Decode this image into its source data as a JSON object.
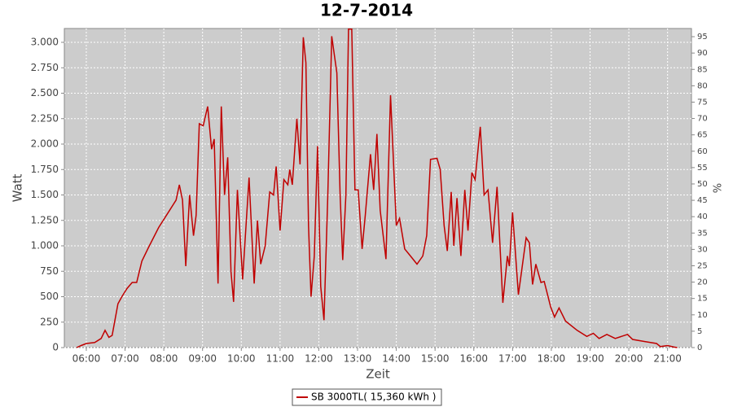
{
  "chart_data": {
    "type": "line",
    "title": "12-7-2014",
    "x_label": "Zeit",
    "y_label": "Watt",
    "y2_label": "%",
    "x": [
      "05:45",
      "05:52",
      "06:00",
      "06:13",
      "06:23",
      "06:29",
      "06:35",
      "06:40",
      "06:49",
      "06:55",
      "07:03",
      "07:11",
      "07:18",
      "07:26",
      "07:36",
      "07:52",
      "08:09",
      "08:19",
      "08:24",
      "08:29",
      "08:34",
      "08:40",
      "08:46",
      "08:50",
      "08:55",
      "09:01",
      "09:08",
      "09:14",
      "09:18",
      "09:24",
      "09:29",
      "09:34",
      "09:39",
      "09:44",
      "09:48",
      "09:54",
      "10:02",
      "10:12",
      "10:20",
      "10:25",
      "10:30",
      "10:37",
      "10:44",
      "10:50",
      "10:54",
      "11:00",
      "11:06",
      "11:12",
      "11:15",
      "11:19",
      "11:26",
      "11:31",
      "11:36",
      "11:40",
      "11:44",
      "11:48",
      "11:53",
      "11:58",
      "12:03",
      "12:08",
      "12:14",
      "12:20",
      "12:28",
      "12:33",
      "12:37",
      "12:42",
      "12:46",
      "12:51",
      "12:56",
      "13:01",
      "13:07",
      "13:12",
      "13:20",
      "13:25",
      "13:30",
      "13:35",
      "13:44",
      "13:51",
      "14:00",
      "14:05",
      "14:13",
      "14:22",
      "14:32",
      "14:41",
      "14:47",
      "14:53",
      "15:03",
      "15:08",
      "15:14",
      "15:19",
      "15:25",
      "15:29",
      "15:34",
      "15:40",
      "15:46",
      "15:51",
      "15:57",
      "16:02",
      "16:10",
      "16:16",
      "16:22",
      "16:29",
      "16:36",
      "16:45",
      "16:52",
      "16:55",
      "17:00",
      "17:09",
      "17:21",
      "17:26",
      "17:31",
      "17:36",
      "17:44",
      "17:49",
      "17:59",
      "18:05",
      "18:12",
      "18:22",
      "18:40",
      "18:55",
      "19:05",
      "19:14",
      "19:26",
      "19:39",
      "19:58",
      "20:06",
      "20:24",
      "20:43",
      "20:49",
      "21:00",
      "21:10",
      "21:15"
    ],
    "series": [
      {
        "name": "SB 3000TL( 15,360 kWh )",
        "color": "#c00000",
        "values": [
          0,
          20,
          40,
          50,
          90,
          170,
          100,
          120,
          430,
          500,
          580,
          640,
          640,
          850,
          980,
          1180,
          1350,
          1450,
          1600,
          1450,
          800,
          1500,
          1100,
          1300,
          2200,
          2180,
          2370,
          1950,
          2050,
          630,
          2370,
          1500,
          1870,
          750,
          450,
          1550,
          670,
          1670,
          630,
          1250,
          820,
          1000,
          1530,
          1500,
          1780,
          1150,
          1650,
          1600,
          1750,
          1600,
          2250,
          1800,
          3050,
          2800,
          1200,
          500,
          900,
          1980,
          600,
          270,
          1500,
          3060,
          2700,
          1500,
          860,
          1500,
          3130,
          3130,
          1550,
          1550,
          970,
          1300,
          1900,
          1550,
          2100,
          1350,
          870,
          2480,
          1200,
          1270,
          970,
          900,
          820,
          900,
          1100,
          1850,
          1860,
          1750,
          1200,
          950,
          1530,
          1000,
          1470,
          900,
          1550,
          1150,
          1720,
          1650,
          2170,
          1500,
          1550,
          1030,
          1580,
          440,
          900,
          800,
          1330,
          520,
          1080,
          1030,
          620,
          820,
          640,
          650,
          400,
          300,
          390,
          260,
          170,
          110,
          140,
          90,
          130,
          90,
          130,
          80,
          60,
          40,
          10,
          20,
          5,
          0
        ]
      }
    ],
    "xlim": [
      "05:26",
      "21:37"
    ],
    "xticks": [
      "06:00",
      "07:00",
      "08:00",
      "09:00",
      "10:00",
      "11:00",
      "12:00",
      "13:00",
      "14:00",
      "15:00",
      "16:00",
      "17:00",
      "18:00",
      "19:00",
      "20:00",
      "21:00"
    ],
    "ylim": [
      0,
      3136
    ],
    "yticks": [
      0,
      250,
      500,
      750,
      {
        "value": 1000,
        "label": "1.000"
      },
      {
        "value": 1250,
        "label": "1.250"
      },
      {
        "value": 1500,
        "label": "1.500"
      },
      {
        "value": 1750,
        "label": "1.750"
      },
      {
        "value": 2000,
        "label": "2.000"
      },
      {
        "value": 2250,
        "label": "2.250"
      },
      {
        "value": 2500,
        "label": "2.500"
      },
      {
        "value": 2750,
        "label": "2.750"
      },
      {
        "value": 3000,
        "label": "3.000"
      }
    ],
    "y2lim": [
      0,
      97.5
    ],
    "y2ticks": [
      0,
      5,
      10,
      15,
      20,
      25,
      30,
      35,
      40,
      45,
      50,
      55,
      60,
      65,
      70,
      75,
      80,
      85,
      90,
      95
    ],
    "grid": true,
    "legend": "bottom"
  }
}
